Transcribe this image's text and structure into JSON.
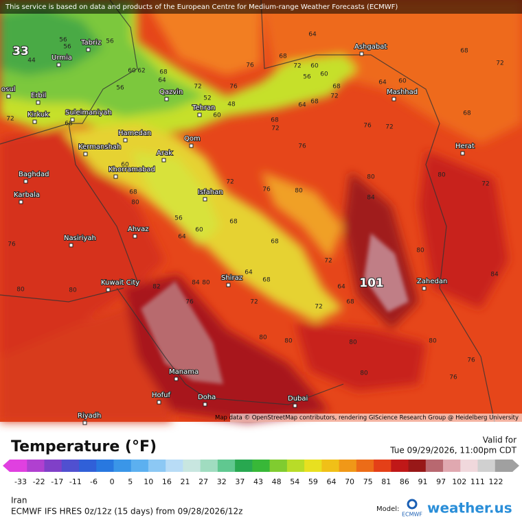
{
  "header": {
    "attribution": "This service is based on data and products of the European Centre for Medium-range Weather Forecasts (ECMWF)"
  },
  "map": {
    "credit": "Map data © OpenStreetMap contributors, rendering GIScience Research Group @ Heidelberg University",
    "cities": [
      "Tabriz",
      "Urmia",
      "osul",
      "Erbil",
      "Kirkuk",
      "Suleimaniyah",
      "Hamedan",
      "Kermanshah",
      "Arak",
      "Khorramabad",
      "Qom",
      "Tehran",
      "Qazvin",
      "Ashgabat",
      "Mashhad",
      "Herat",
      "Baghdad",
      "Karbala",
      "Isfahan",
      "Nasiriyah",
      "Ahvaz",
      "Kuwait City",
      "Shiraz",
      "Zahedan",
      "Manama",
      "Hofuf",
      "Doha",
      "Dubai",
      "Riyadh"
    ],
    "temperature_labels": [
      "33",
      "56",
      "56",
      "56",
      "44",
      "56",
      "60",
      "62",
      "68",
      "64",
      "72",
      "76",
      "52",
      "48",
      "60",
      "64",
      "68",
      "72",
      "60",
      "60",
      "56",
      "76",
      "68",
      "72",
      "64",
      "68",
      "68",
      "72",
      "76",
      "72",
      "64",
      "60",
      "68",
      "72",
      "68",
      "76",
      "72",
      "76",
      "80",
      "80",
      "84",
      "80",
      "72",
      "64",
      "68",
      "101",
      "80",
      "72",
      "80",
      "80",
      "76",
      "76",
      "80",
      "76",
      "80",
      "72",
      "68",
      "60",
      "68",
      "80",
      "84",
      "80",
      "76",
      "68",
      "64",
      "72",
      "80",
      "80",
      "72",
      "80",
      "84",
      "82",
      "60",
      "64",
      "56",
      "68",
      "68"
    ]
  },
  "legend": {
    "title": "Temperature (°F)",
    "ticks": [
      "-33",
      "-22",
      "-17",
      "-11",
      "-6",
      "0",
      "5",
      "10",
      "16",
      "21",
      "27",
      "32",
      "37",
      "43",
      "48",
      "54",
      "59",
      "64",
      "70",
      "75",
      "81",
      "86",
      "91",
      "97",
      "102",
      "111",
      "122"
    ],
    "valid_label": "Valid for",
    "valid_time": "Tue 09/29/2026, 11:00pm CDT"
  },
  "footer": {
    "region": "Iran",
    "model_run": "ECMWF IFS HRES 0z/12z (15 days) from 09/28/2026/12z",
    "model_label": "Model:",
    "model_logo": "ECMWF",
    "brand": "weather.us"
  }
}
